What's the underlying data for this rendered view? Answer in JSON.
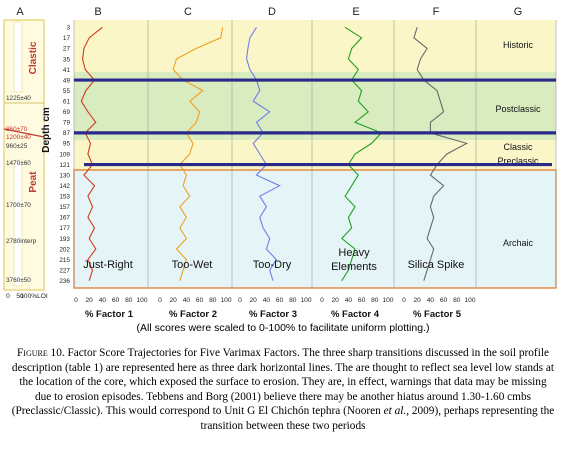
{
  "chart_data": {
    "type": "line",
    "columns": [
      "A",
      "B",
      "C",
      "D",
      "E",
      "F",
      "G"
    ],
    "y_axis": {
      "label": "Depth cm",
      "ticks": [
        3,
        17,
        27,
        35,
        41,
        49,
        55,
        61,
        69,
        79,
        87,
        95,
        109,
        121,
        130,
        142,
        153,
        157,
        167,
        177,
        193,
        202,
        215,
        227,
        236
      ],
      "direction": "down"
    },
    "column_a": {
      "labels": [
        "Clastic",
        "Peat"
      ],
      "dates": [
        "1225±40",
        "860±70",
        "1200±40",
        "960±25",
        "1470±60",
        "1700±70",
        "2780interp",
        "3760±50"
      ],
      "axis": [
        "0",
        "50",
        "100%LOI"
      ]
    },
    "factor_axis": [
      "0",
      "20",
      "40",
      "60",
      "80",
      "100"
    ],
    "series": [
      {
        "name": "Just-Right",
        "x_label": "% Factor 1",
        "color": "#d43a1e",
        "values": [
          40,
          20,
          12,
          10,
          14,
          28,
          15,
          8,
          18,
          30,
          14,
          22,
          18,
          25,
          12,
          28,
          18,
          25,
          18,
          28,
          20,
          30,
          18,
          25,
          20
        ]
      },
      {
        "name": "Too-Wet",
        "x_label": "% Factor 2",
        "color": "#f0a020",
        "values": [
          95,
          92,
          55,
          25,
          20,
          35,
          65,
          45,
          60,
          55,
          40,
          50,
          45,
          30,
          40,
          35,
          45,
          30,
          40,
          30,
          40,
          25,
          40,
          35,
          30
        ]
      },
      {
        "name": "Too-Dry",
        "x_label": "% Factor 3",
        "color": "#6f7fe6",
        "values": [
          25,
          15,
          12,
          10,
          15,
          25,
          30,
          20,
          45,
          25,
          35,
          20,
          30,
          40,
          25,
          60,
          30,
          40,
          30,
          35,
          45,
          40,
          55,
          45,
          50
        ]
      },
      {
        "name": "Heavy Elements",
        "x_label": "% Factor 4",
        "color": "#22a020",
        "values": [
          35,
          60,
          45,
          40,
          55,
          45,
          60,
          55,
          70,
          50,
          90,
          75,
          50,
          40,
          55,
          45,
          35,
          50,
          40,
          45,
          30,
          50,
          45,
          40,
          30
        ]
      },
      {
        "name": "Silica Spike",
        "x_label": "% Factor 5",
        "color": "#6a6a6a",
        "values": [
          20,
          15,
          35,
          25,
          20,
          30,
          50,
          55,
          60,
          40,
          40,
          95,
          65,
          50,
          40,
          60,
          45,
          40,
          45,
          40,
          35,
          45,
          40,
          35,
          30
        ]
      }
    ],
    "zones": [
      "Historic",
      "Postclassic",
      "Classic Preclassic",
      "Archaic"
    ],
    "transition_lines_at_depth": [
      49,
      87,
      121
    ],
    "footnote": "(All scores were scaled to 0-100% to facilitate uniform plotting.)"
  },
  "caption": {
    "label": "Figure 10.",
    "text_1": " Factor Score Trajectories for Five Varimax Factors. The three sharp transitions discussed in the soil profile description (table 1) are represented here as three dark horizontal lines. The are thought to reflect sea level low stands at the location of the core, which exposed the surface to erosion. They are, in effect, warnings that data may be missing due to erosion episodes. Tebbens and Borg (2001) believe there may be another hiatus around 1.30-1.60 cmbs (Preclassic/Classic). This would correspond to Unit G El Chichón tephra (Nooren ",
    "et_al": "et al.",
    "text_2": ", 2009), perhaps representing the transition between these two periods"
  }
}
